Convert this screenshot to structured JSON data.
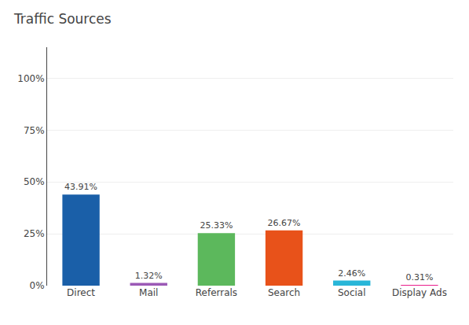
{
  "chart_data": {
    "type": "bar",
    "title": "Traffic Sources",
    "categories": [
      "Direct",
      "Mail",
      "Referrals",
      "Search",
      "Social",
      "Display Ads"
    ],
    "values": [
      43.91,
      1.32,
      25.33,
      26.67,
      2.46,
      0.31
    ],
    "value_labels": [
      "43.91%",
      "1.32%",
      "25.33%",
      "26.67%",
      "2.46%",
      "0.31%"
    ],
    "colors": [
      "#1a5fa8",
      "#9b59b6",
      "#5cb85c",
      "#e8521a",
      "#29b6d8",
      "#e91e8c"
    ],
    "ylim": [
      0,
      115
    ],
    "yticks": [
      {
        "value": 0,
        "label": "0%"
      },
      {
        "value": 25,
        "label": "25%"
      },
      {
        "value": 50,
        "label": "50%"
      },
      {
        "value": 75,
        "label": "75%"
      },
      {
        "value": 100,
        "label": "100%"
      }
    ],
    "grid": true,
    "data_labels": true
  }
}
